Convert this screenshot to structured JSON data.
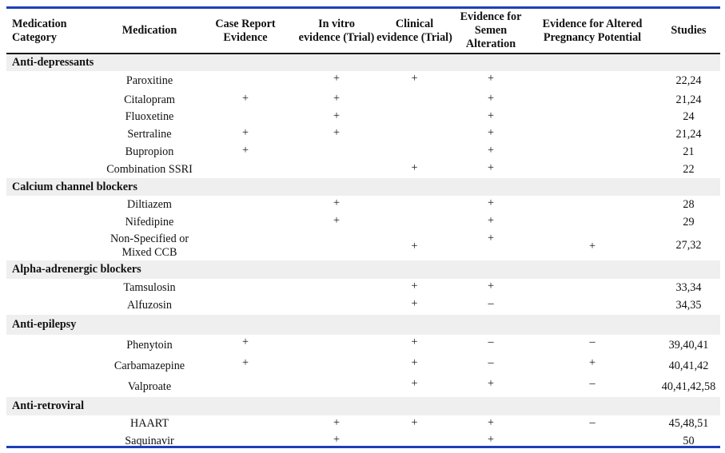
{
  "headers": {
    "category": "Medication Category",
    "medication": "Medication",
    "case_report": "Case Report Evidence",
    "in_vitro": "In vitro evidence (Trial)",
    "clinical": "Clinical evidence (Trial)",
    "semen": "Evidence for Semen Alteration",
    "pregnancy": "Evidence for Altered Pregnancy Potential",
    "studies": "Studies"
  },
  "groups": [
    {
      "category": "Anti-depressants",
      "rows": [
        {
          "name": "Paroxitine",
          "case": "",
          "vitro": "+",
          "clinical": "+",
          "semen": "+",
          "preg": "",
          "studies": "22,24"
        },
        {
          "name": "Citalopram",
          "case": "+",
          "vitro": "+",
          "clinical": "",
          "semen": "+",
          "preg": "",
          "studies": "21,24"
        },
        {
          "name": "Fluoxetine",
          "case": "",
          "vitro": "+",
          "clinical": "",
          "semen": "+",
          "preg": "",
          "studies": "24"
        },
        {
          "name": "Sertraline",
          "case": "+",
          "vitro": "+",
          "clinical": "",
          "semen": "+",
          "preg": "",
          "studies": "21,24"
        },
        {
          "name": "Bupropion",
          "case": "+",
          "vitro": "",
          "clinical": "",
          "semen": "+",
          "preg": "",
          "studies": "21"
        },
        {
          "name": "Combination SSRI",
          "case": "",
          "vitro": "",
          "clinical": "+",
          "semen": "+",
          "preg": "",
          "studies": "22"
        }
      ]
    },
    {
      "category": "Calcium channel blockers",
      "rows": [
        {
          "name": "Diltiazem",
          "case": "",
          "vitro": "+",
          "clinical": "",
          "semen": "+",
          "preg": "",
          "studies": "28"
        },
        {
          "name": "Nifedipine",
          "case": "",
          "vitro": "+",
          "clinical": "",
          "semen": "+",
          "preg": "",
          "studies": "29"
        },
        {
          "name": "Non-Specified or Mixed CCB",
          "case": "",
          "vitro": "",
          "clinical": "+",
          "semen": "+",
          "preg": "+",
          "studies": "27,32"
        }
      ]
    },
    {
      "category": "Alpha-adrenergic blockers",
      "rows": [
        {
          "name": "Tamsulosin",
          "case": "",
          "vitro": "",
          "clinical": "+",
          "semen": "+",
          "preg": "",
          "studies": "33,34"
        },
        {
          "name": "Alfuzosin",
          "case": "",
          "vitro": "",
          "clinical": "+",
          "semen": "–",
          "preg": "",
          "studies": "34,35"
        }
      ]
    },
    {
      "category": "Anti-epilepsy",
      "rows": [
        {
          "name": "Phenytoin",
          "case": "+",
          "vitro": "",
          "clinical": "+",
          "semen": "–",
          "preg": "–",
          "studies": "39,40,41"
        },
        {
          "name": "Carbamazepine",
          "case": "+",
          "vitro": "",
          "clinical": "+",
          "semen": "–",
          "preg": "+",
          "studies": "40,41,42"
        },
        {
          "name": "Valproate",
          "case": "",
          "vitro": "",
          "clinical": "+",
          "semen": "+",
          "preg": "–",
          "studies": "40,41,42,58"
        }
      ]
    },
    {
      "category": "Anti-retroviral",
      "rows": [
        {
          "name": "HAART",
          "case": "",
          "vitro": "+",
          "clinical": "+",
          "semen": "+",
          "preg": "–",
          "studies": "45,48,51"
        },
        {
          "name": "Saquinavir",
          "case": "",
          "vitro": "+",
          "clinical": "",
          "semen": "+",
          "preg": "",
          "studies": "50"
        }
      ]
    }
  ]
}
